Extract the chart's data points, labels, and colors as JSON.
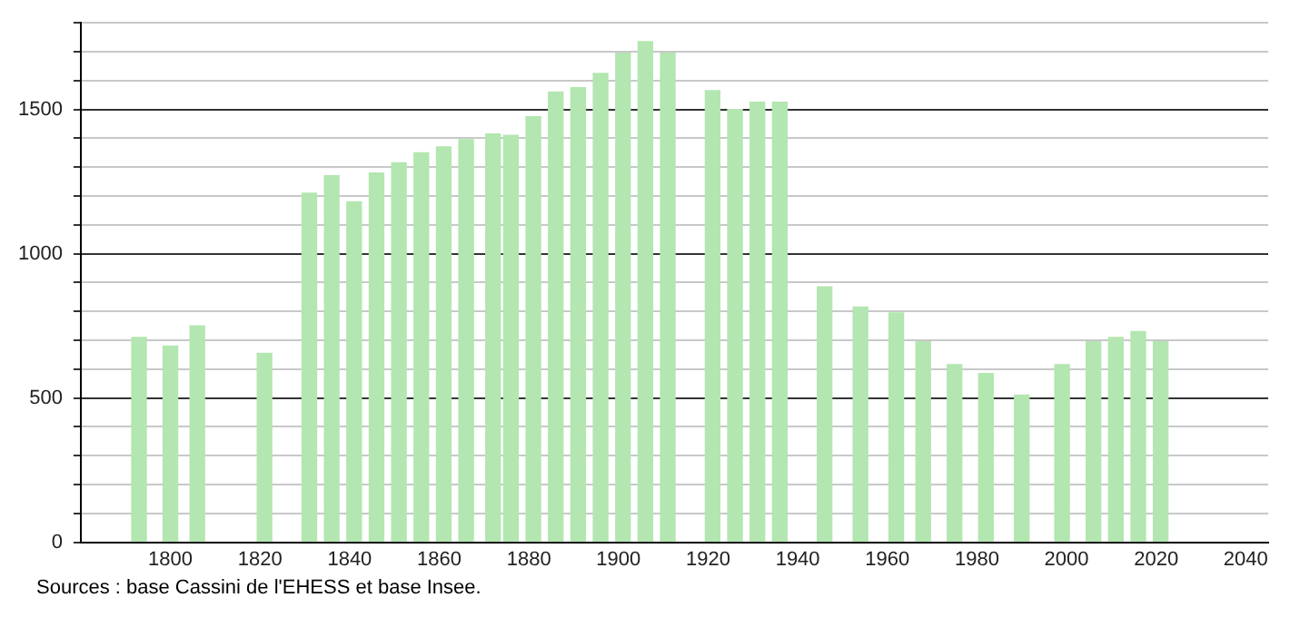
{
  "chart_data": {
    "type": "bar",
    "x": [
      1793,
      1800,
      1806,
      1821,
      1831,
      1836,
      1841,
      1846,
      1851,
      1856,
      1861,
      1866,
      1872,
      1876,
      1881,
      1886,
      1891,
      1896,
      1901,
      1906,
      1911,
      1921,
      1926,
      1931,
      1936,
      1946,
      1954,
      1962,
      1968,
      1975,
      1982,
      1990,
      1999,
      2006,
      2011,
      2016,
      2021
    ],
    "values": [
      710,
      680,
      750,
      655,
      1210,
      1270,
      1180,
      1280,
      1315,
      1350,
      1370,
      1395,
      1415,
      1410,
      1475,
      1560,
      1575,
      1625,
      1695,
      1735,
      1695,
      1565,
      1500,
      1525,
      1525,
      885,
      815,
      795,
      695,
      615,
      585,
      510,
      615,
      695,
      710,
      730,
      695
    ],
    "color": "#b3e6b0",
    "xlim": [
      1780,
      2045
    ],
    "xticks": [
      1800,
      1820,
      1840,
      1860,
      1880,
      1900,
      1920,
      1940,
      1960,
      1980,
      2000,
      2020,
      2040
    ],
    "ylim": [
      0,
      1800
    ],
    "yticks": [
      0,
      {
        "value": 100,
        "label": null
      },
      {
        "value": 200,
        "label": null
      },
      {
        "value": 300,
        "label": null
      },
      {
        "value": 400,
        "label": null
      },
      500,
      {
        "value": 600,
        "label": null
      },
      {
        "value": 700,
        "label": null
      },
      {
        "value": 800,
        "label": null
      },
      {
        "value": 900,
        "label": null
      },
      1000,
      {
        "value": 1100,
        "label": null
      },
      {
        "value": 1200,
        "label": null
      },
      {
        "value": 1300,
        "label": null
      },
      {
        "value": 1400,
        "label": null
      },
      1500,
      {
        "value": 1600,
        "label": null
      },
      {
        "value": 1700,
        "label": null
      },
      {
        "value": 1800,
        "label": null
      }
    ],
    "grid": "y",
    "annotations": [
      "Sources : base Cassini de l'EHESS et base Insee."
    ]
  }
}
